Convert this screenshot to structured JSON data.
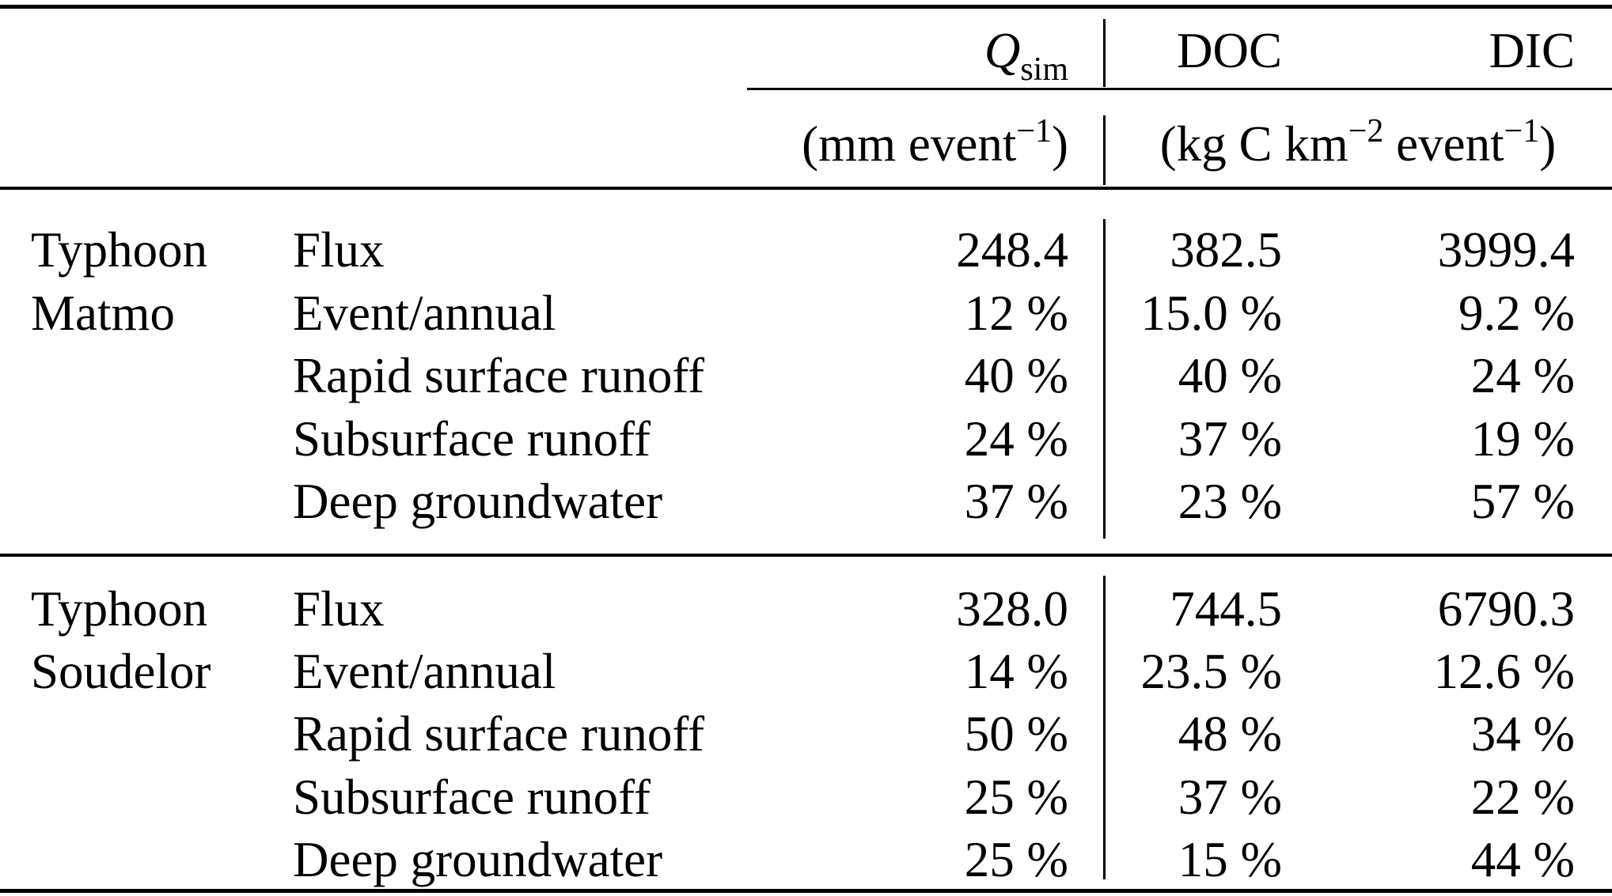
{
  "table": {
    "header": {
      "col_qsim": {
        "segments": [
          {
            "t": "Q",
            "italic": true
          },
          {
            "t": "sim",
            "sub": true
          }
        ]
      },
      "col_doc": "DOC",
      "col_dic": "DIC",
      "unit_qsim": {
        "segments": [
          {
            "t": "(mm event"
          },
          {
            "t": "−1",
            "sup": true
          },
          {
            "t": ")"
          }
        ]
      },
      "unit_carbon": {
        "segments": [
          {
            "t": "(kg C km"
          },
          {
            "t": "−2",
            "sup": true
          },
          {
            "t": " event"
          },
          {
            "t": "−1",
            "sup": true
          },
          {
            "t": ")"
          }
        ]
      }
    },
    "sections": [
      {
        "group": [
          "Typhoon",
          "Matmo"
        ],
        "rows": [
          {
            "label": "Flux",
            "qsim": "248.4",
            "doc": "382.5",
            "dic": "3999.4"
          },
          {
            "label": "Event/annual",
            "qsim": "12 %",
            "doc": "15.0 %",
            "dic": "9.2 %"
          },
          {
            "label": "Rapid surface runoff",
            "qsim": "40 %",
            "doc": "40 %",
            "dic": "24 %"
          },
          {
            "label": "Subsurface runoff",
            "qsim": "24 %",
            "doc": "37 %",
            "dic": "19 %"
          },
          {
            "label": "Deep groundwater",
            "qsim": "37 %",
            "doc": "23 %",
            "dic": "57 %"
          }
        ]
      },
      {
        "group": [
          "Typhoon",
          "Soudelor"
        ],
        "rows": [
          {
            "label": "Flux",
            "qsim": "328.0",
            "doc": "744.5",
            "dic": "6790.3"
          },
          {
            "label": "Event/annual",
            "qsim": "14 %",
            "doc": "23.5 %",
            "dic": "12.6 %"
          },
          {
            "label": "Rapid surface runoff",
            "qsim": "50 %",
            "doc": "48 %",
            "dic": "34 %"
          },
          {
            "label": "Subsurface runoff",
            "qsim": "25 %",
            "doc": "37 %",
            "dic": "22 %"
          },
          {
            "label": "Deep groundwater",
            "qsim": "25 %",
            "doc": "15 %",
            "dic": "44 %"
          }
        ]
      }
    ]
  },
  "colors": {
    "background": "#ffffff",
    "text": "#000000",
    "rule": "#000000"
  }
}
